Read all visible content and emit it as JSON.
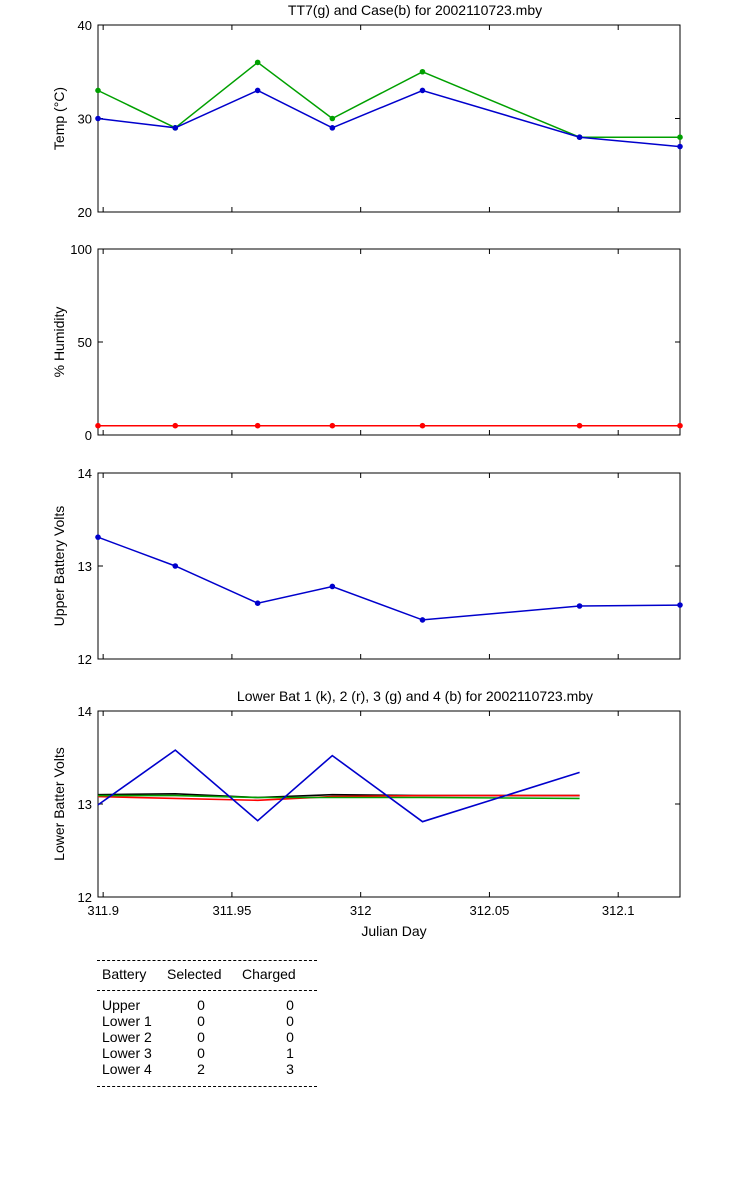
{
  "chart_data": [
    {
      "type": "line",
      "title": "TT7(g) and Case(b) for 2002110723.mby",
      "xlabel": "",
      "ylabel": "Temp  (°C)",
      "xlim": [
        311.898,
        312.124
      ],
      "ylim": [
        20,
        40
      ],
      "yticks": [
        "20",
        "30",
        "40"
      ],
      "series": [
        {
          "color": "#00a000",
          "x": [
            311.898,
            311.928,
            311.96,
            311.989,
            312.024,
            312.085,
            312.124
          ],
          "values": [
            33,
            29,
            36,
            30,
            35,
            28,
            28
          ]
        },
        {
          "color": "#0000cc",
          "x": [
            311.898,
            311.928,
            311.96,
            311.989,
            312.024,
            312.085,
            312.124
          ],
          "values": [
            30,
            29,
            33,
            29,
            33,
            28,
            27
          ]
        }
      ]
    },
    {
      "type": "line",
      "title": "",
      "xlabel": "",
      "ylabel": "% Humidity",
      "xlim": [
        311.898,
        312.124
      ],
      "ylim": [
        0,
        100
      ],
      "yticks": [
        "0",
        "50",
        "100"
      ],
      "series": [
        {
          "color": "#ff0000",
          "x": [
            311.898,
            311.928,
            311.96,
            311.989,
            312.024,
            312.085,
            312.124
          ],
          "values": [
            5,
            5,
            5,
            5,
            5,
            5,
            5
          ]
        }
      ]
    },
    {
      "type": "line",
      "title": "",
      "xlabel": "",
      "ylabel": "Upper Battery Volts",
      "xlim": [
        311.898,
        312.124
      ],
      "ylim": [
        12,
        14
      ],
      "yticks": [
        "12",
        "13",
        "14"
      ],
      "series": [
        {
          "color": "#0000cc",
          "x": [
            311.898,
            311.928,
            311.96,
            311.989,
            312.024,
            312.085,
            312.124
          ],
          "values": [
            13.31,
            13.0,
            12.6,
            12.78,
            12.42,
            12.57,
            12.58
          ]
        }
      ]
    },
    {
      "type": "line",
      "title": "Lower Bat 1 (k), 2 (r), 3 (g) and 4 (b) for 2002110723.mby",
      "xlabel": "Julian Day",
      "ylabel": "Lower Batter Volts",
      "xlim": [
        311.898,
        312.124
      ],
      "ylim": [
        12,
        14
      ],
      "yticks": [
        "12",
        "13",
        "14"
      ],
      "xticks": [
        311.9,
        311.95,
        312,
        312.05,
        312.1
      ],
      "xticklabels": [
        "311.9",
        "311.95",
        "312",
        "312.05",
        "312.1"
      ],
      "series": [
        {
          "color": "#000000",
          "x": [
            311.898,
            311.928,
            311.96,
            311.989,
            312.024,
            312.085
          ],
          "values": [
            13.1,
            13.11,
            13.07,
            13.1,
            13.09,
            13.09
          ]
        },
        {
          "color": "#ff0000",
          "x": [
            311.898,
            311.928,
            311.96,
            311.989,
            312.024,
            312.085
          ],
          "values": [
            13.08,
            13.06,
            13.04,
            13.08,
            13.09,
            13.09
          ]
        },
        {
          "color": "#00a000",
          "x": [
            311.898,
            311.928,
            311.96,
            311.989,
            312.024,
            312.085
          ],
          "values": [
            13.09,
            13.09,
            13.07,
            13.07,
            13.07,
            13.06
          ]
        },
        {
          "color": "#0000cc",
          "x": [
            311.898,
            311.928,
            311.96,
            311.989,
            312.024,
            312.085
          ],
          "values": [
            12.99,
            13.58,
            12.82,
            13.52,
            12.81,
            13.34
          ]
        }
      ]
    }
  ],
  "battery_table": {
    "headers": [
      "Battery",
      "Selected",
      "Charged"
    ],
    "rows": [
      [
        "Upper",
        "0",
        "0"
      ],
      [
        "Lower 1",
        "0",
        "0"
      ],
      [
        "Lower 2",
        "0",
        "0"
      ],
      [
        "Lower 3",
        "0",
        "1"
      ],
      [
        "Lower 4",
        "2",
        "3"
      ]
    ]
  }
}
